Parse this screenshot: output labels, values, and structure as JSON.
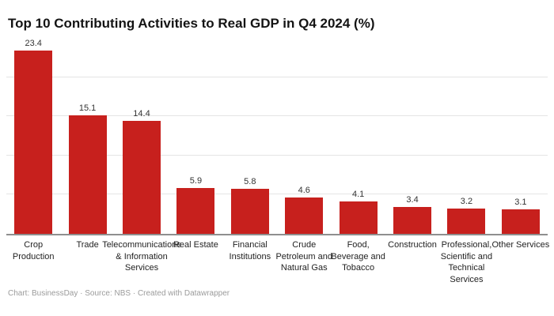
{
  "chart_data": {
    "type": "bar",
    "title": "Top 10 Contributing Activities to Real GDP in Q4 2024 (%)",
    "categories": [
      "Crop Production",
      "Trade",
      "Telecommunications & Information Services",
      "Real Estate",
      "Financial Institutions",
      "Crude Petroleum and Natural Gas",
      "Food, Beverage and Tobacco",
      "Construction",
      "Professional, Scientific and Technical Services",
      "Other Services"
    ],
    "tick_label_lines": [
      [
        "Crop",
        "Production"
      ],
      [
        "Trade"
      ],
      [
        "Telecommunications",
        "& Information",
        "Services"
      ],
      [
        "Real Estate"
      ],
      [
        "Financial",
        "Institutions"
      ],
      [
        "Crude",
        "Petroleum and",
        "Natural Gas"
      ],
      [
        "Food,",
        "Beverage and",
        "Tobacco"
      ],
      [
        "Construction"
      ],
      [
        "Professional,",
        "Scientific and",
        "Technical",
        "Services"
      ],
      [
        "Other Services"
      ]
    ],
    "values": [
      23.4,
      15.1,
      14.4,
      5.9,
      5.8,
      4.6,
      4.1,
      3.4,
      3.2,
      3.1
    ],
    "value_labels": [
      "23.4",
      "15.1",
      "14.4",
      "5.9",
      "5.8",
      "4.6",
      "4.1",
      "3.4",
      "3.2",
      "3.1"
    ],
    "xlabel": "",
    "ylabel": "",
    "ylim": [
      0,
      25
    ],
    "gridlines": [
      5,
      10,
      15,
      20
    ],
    "grid": "horizontal",
    "legend": "none",
    "bar_color": "#c7201d"
  },
  "footer": {
    "text": "Chart: BusinessDay · Source: NBS · Created with Datawrapper"
  }
}
